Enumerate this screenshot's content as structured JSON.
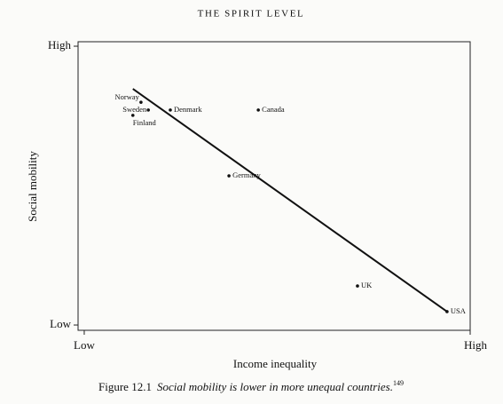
{
  "header": "THE SPIRIT LEVEL",
  "chart_data": {
    "type": "scatter",
    "x_label": "Income inequality",
    "y_label": "Social mobility",
    "xlim": [
      -0.16,
      10
    ],
    "ylim": [
      -0.19,
      10.16
    ],
    "xticks": [
      {
        "value": 0,
        "label": "Low"
      },
      {
        "value": 10,
        "label": "High"
      }
    ],
    "yticks": [
      {
        "value": 0,
        "label": "Low"
      },
      {
        "value": 10,
        "label": "High"
      }
    ],
    "color": "#111111",
    "points": {
      "names": [
        "Norway",
        "Sweden",
        "Finland",
        "Denmark",
        "Canada",
        "Germany",
        "UK",
        "USA"
      ],
      "x": [
        1.47,
        1.66,
        1.26,
        2.23,
        4.51,
        3.75,
        7.08,
        9.4
      ],
      "y": [
        7.99,
        7.71,
        7.52,
        7.71,
        7.71,
        5.35,
        1.4,
        0.48
      ]
    },
    "trend_line": {
      "x": [
        1.26,
        9.4
      ],
      "y": [
        8.47,
        0.48
      ]
    }
  },
  "caption": {
    "label": "Figure 12.1",
    "text": "Social mobility is lower in more unequal countries.",
    "ref": "149"
  }
}
